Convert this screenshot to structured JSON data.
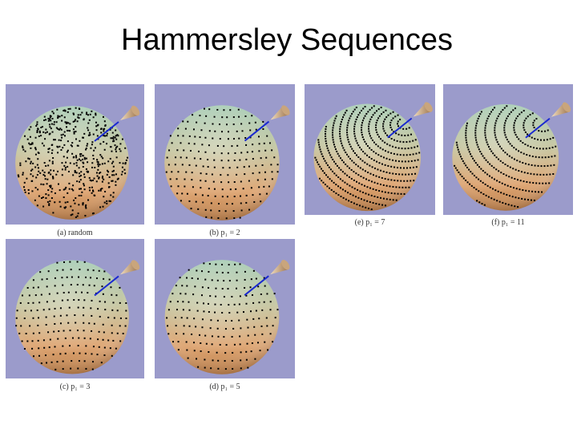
{
  "title": "Hammersley Sequences",
  "panels": [
    {
      "caption": "(a) random"
    },
    {
      "caption": "(b) p₁ = 2"
    },
    {
      "caption": "(c) p₁ = 3"
    },
    {
      "caption": "(d) p₁ = 5"
    },
    {
      "caption": "(e) p₁ = 7"
    },
    {
      "caption": "(f) p₁ = 11"
    }
  ]
}
